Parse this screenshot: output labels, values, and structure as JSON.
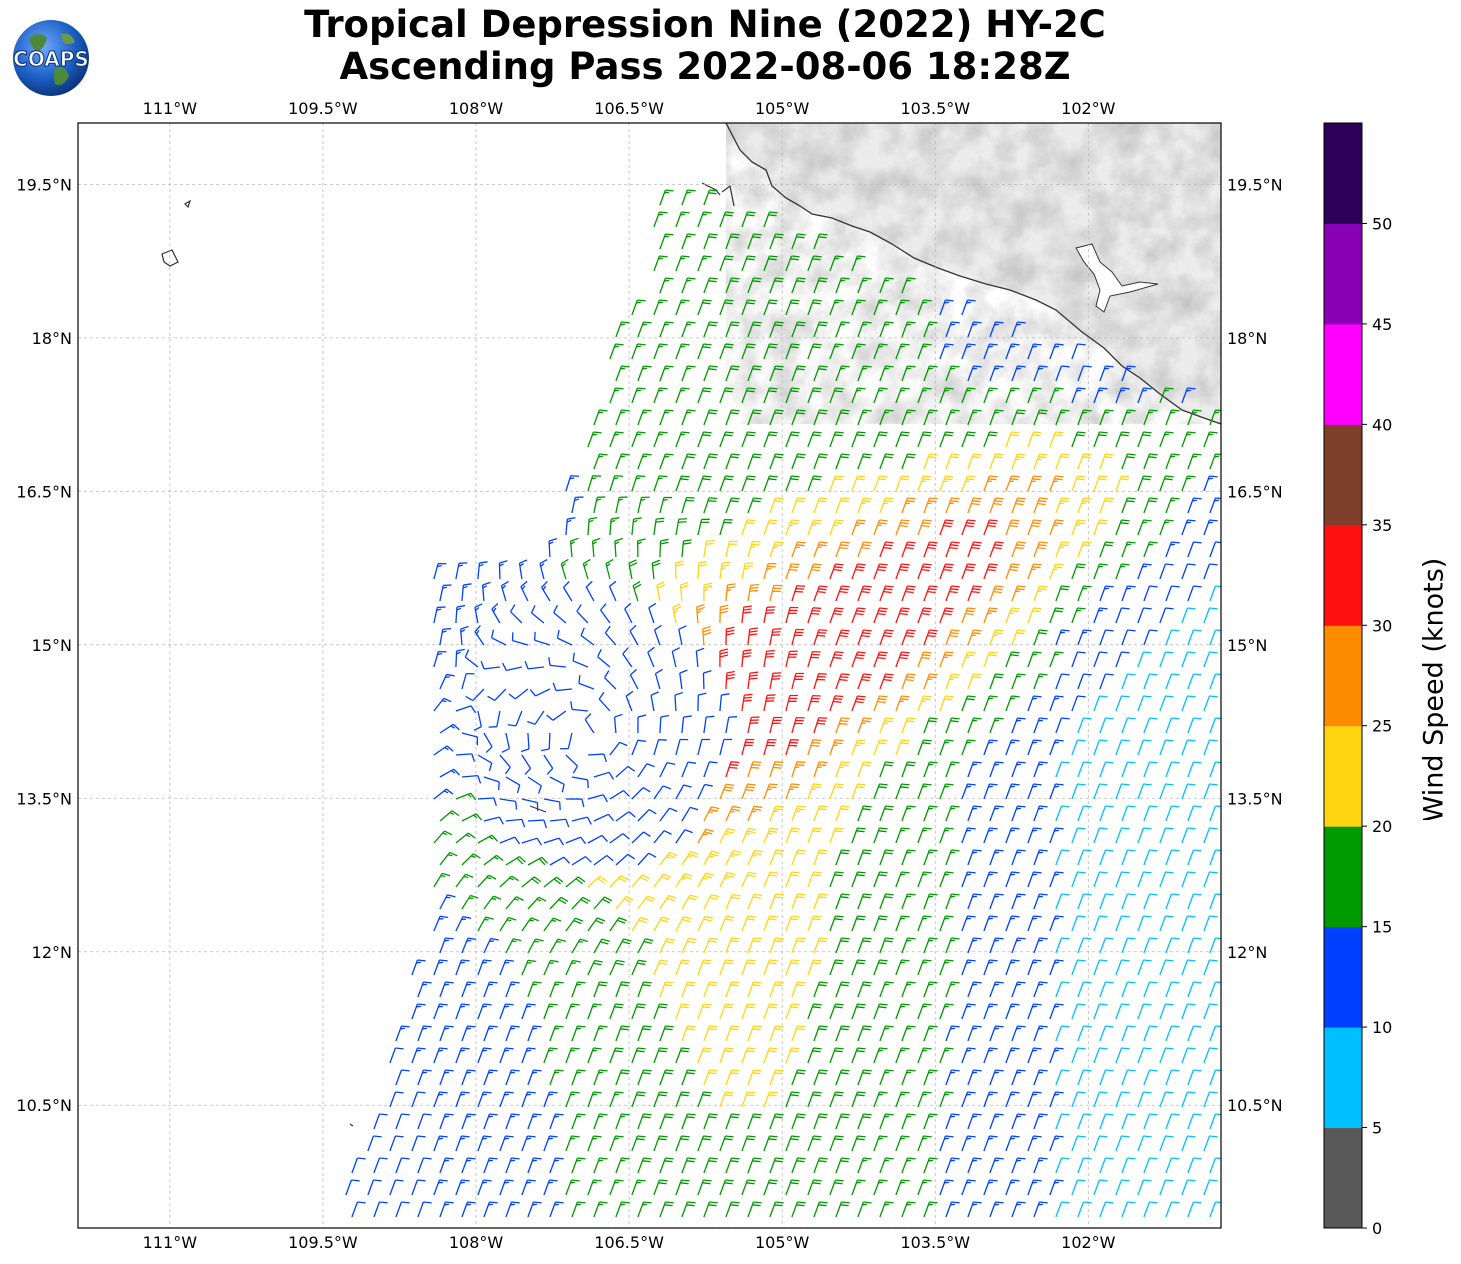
{
  "header": {
    "title_line1": "Tropical Depression Nine (2022) HY-2C",
    "title_line2": "Ascending Pass 2022-08-06 18:28Z",
    "logo_text": "COAPS"
  },
  "map": {
    "lon_ticks": [
      "111°W",
      "109.5°W",
      "108°W",
      "106.5°W",
      "105°W",
      "103.5°W",
      "102°W"
    ],
    "lat_ticks": [
      "19.5°N",
      "18°N",
      "16.5°N",
      "15°N",
      "13.5°N",
      "12°N",
      "10.5°N"
    ],
    "lon_values": [
      -111,
      -109.5,
      -108,
      -106.5,
      -105,
      -103.5,
      -102
    ],
    "lat_values": [
      19.5,
      18,
      16.5,
      15,
      13.5,
      12,
      10.5
    ],
    "extent": {
      "lon_min": -111.9,
      "lon_max": -100.7,
      "lat_min": 9.3,
      "lat_max": 20.1
    },
    "land_color": "#e8e8e8",
    "gridlines": "dashed"
  },
  "colorbar": {
    "label": "Wind Speed (knots)",
    "ticks": [
      "0",
      "5",
      "10",
      "15",
      "20",
      "25",
      "30",
      "35",
      "40",
      "45",
      "50"
    ],
    "bins": [
      {
        "min": 0,
        "max": 5,
        "color": "#595959"
      },
      {
        "min": 5,
        "max": 10,
        "color": "#00bfff"
      },
      {
        "min": 10,
        "max": 15,
        "color": "#0040ff"
      },
      {
        "min": 15,
        "max": 20,
        "color": "#009900"
      },
      {
        "min": 20,
        "max": 25,
        "color": "#ffd511"
      },
      {
        "min": 25,
        "max": 30,
        "color": "#ff8c00"
      },
      {
        "min": 30,
        "max": 35,
        "color": "#ff1111"
      },
      {
        "min": 35,
        "max": 40,
        "color": "#7f3f2a"
      },
      {
        "min": 40,
        "max": 45,
        "color": "#ff00ff"
      },
      {
        "min": 45,
        "max": 50,
        "color": "#8a00b5"
      },
      {
        "min": 50,
        "max": 55,
        "color": "#2e0058"
      }
    ]
  },
  "wind_field": {
    "center_lat": 14.1,
    "center_lon": -106.9,
    "max_speed_knots": 32
  }
}
